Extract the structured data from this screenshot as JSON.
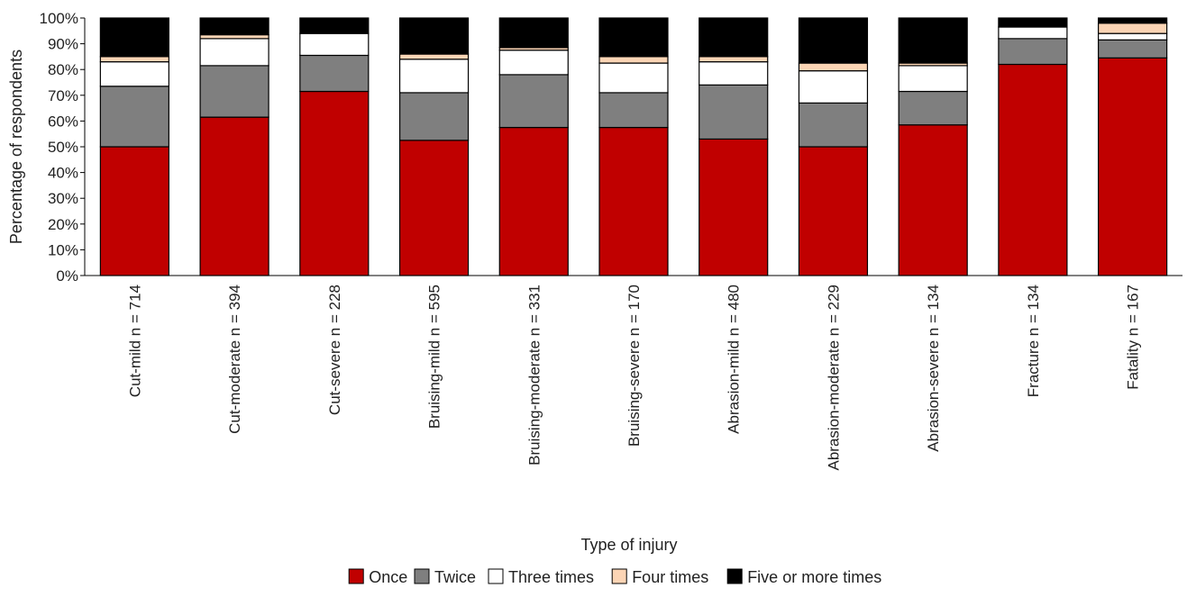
{
  "chart_data": {
    "type": "bar",
    "stacked": true,
    "title": "",
    "xlabel": "Type of injury",
    "ylabel": "Percentage of respondents",
    "ylim": [
      0,
      100
    ],
    "y_ticks": [
      "0%",
      "10%",
      "20%",
      "30%",
      "40%",
      "50%",
      "60%",
      "70%",
      "80%",
      "90%",
      "100%"
    ],
    "grid": false,
    "legend_position": "bottom",
    "categories": [
      "Cut-mild n = 714",
      "Cut-moderate n = 394",
      "Cut-severe n = 228",
      "Bruising-mild n = 595",
      "Bruising-moderate n = 331",
      "Bruising-severe n = 170",
      "Abrasion-mild n = 480",
      "Abrasion-moderate n = 229",
      "Abrasion-severe n = 134",
      "Fracture n = 134",
      "Fatality n = 167"
    ],
    "series": [
      {
        "name": "Once",
        "color": "#c00000",
        "values": [
          50,
          61.5,
          71.5,
          52.5,
          57.5,
          57.5,
          53,
          50,
          58.5,
          82,
          84.5
        ]
      },
      {
        "name": "Twice",
        "color": "#7f7f7f",
        "values": [
          23.5,
          20,
          14,
          18.5,
          20.5,
          13.5,
          21,
          17,
          13,
          10,
          7
        ]
      },
      {
        "name": "Three times",
        "color": "#ffffff",
        "values": [
          9.5,
          10.5,
          8.5,
          13,
          9.5,
          11.5,
          9,
          12.5,
          10,
          4.5,
          2.5
        ]
      },
      {
        "name": "Four times",
        "color": "#fcd5b5",
        "values": [
          2,
          1.5,
          0,
          2,
          1,
          2.5,
          2,
          3,
          1,
          0,
          4
        ]
      },
      {
        "name": "Five or more times",
        "color": "#000000",
        "values": [
          15,
          6.5,
          6,
          14,
          11.5,
          15,
          15,
          17.5,
          17.5,
          3.5,
          2
        ]
      }
    ]
  }
}
